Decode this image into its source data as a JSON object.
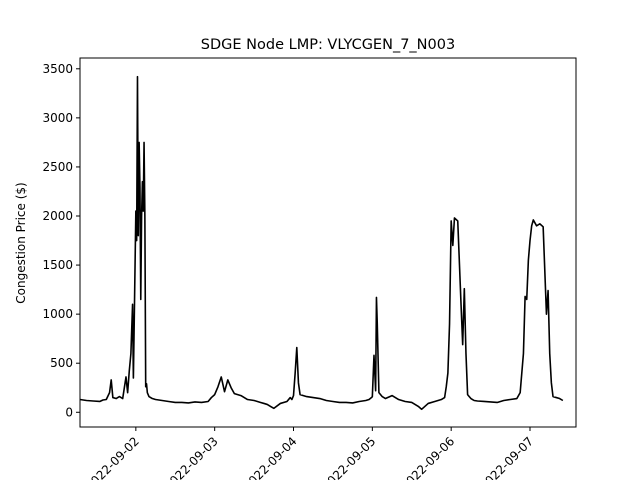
{
  "chart_data": {
    "type": "line",
    "title": "SDGE Node LMP: VLYCGEN_7_N003",
    "xlabel": "",
    "ylabel": "Congestion Price ($)",
    "x_axis_type": "datetime",
    "xlim": [
      "2022-09-01T07:00",
      "2022-09-07T14:00"
    ],
    "ylim": [
      -150,
      3610
    ],
    "x_ticks": [
      "2022-09-02",
      "2022-09-03",
      "2022-09-04",
      "2022-09-05",
      "2022-09-06",
      "2022-09-07"
    ],
    "x_tick_labels": [
      "2022-09-02",
      "2022-09-03",
      "2022-09-04",
      "2022-09-05",
      "2022-09-06",
      "2022-09-07"
    ],
    "y_ticks": [
      0,
      500,
      1000,
      1500,
      2000,
      2500,
      3000,
      3500
    ],
    "y_tick_labels": [
      "0",
      "500",
      "1000",
      "1500",
      "2000",
      "2500",
      "3000",
      "3500"
    ],
    "grid": false,
    "line_color": "#000000",
    "series": [
      {
        "x": [
          "2022-09-01T07:00",
          "2022-09-01T09:00",
          "2022-09-01T11:00",
          "2022-09-01T13:00",
          "2022-09-01T14:00",
          "2022-09-01T15:00",
          "2022-09-01T16:00",
          "2022-09-01T16:30",
          "2022-09-01T17:00",
          "2022-09-01T18:00",
          "2022-09-01T19:00",
          "2022-09-01T20:00",
          "2022-09-01T20:30",
          "2022-09-01T21:00",
          "2022-09-01T21:30",
          "2022-09-01T22:00",
          "2022-09-01T22:30",
          "2022-09-01T23:00",
          "2022-09-01T23:15",
          "2022-09-01T23:30",
          "2022-09-02T00:00",
          "2022-09-02T00:15",
          "2022-09-02T00:30",
          "2022-09-02T00:45",
          "2022-09-02T01:00",
          "2022-09-02T01:15",
          "2022-09-02T01:30",
          "2022-09-02T01:45",
          "2022-09-02T02:00",
          "2022-09-02T02:15",
          "2022-09-02T02:30",
          "2022-09-02T02:45",
          "2022-09-02T03:00",
          "2022-09-02T03:15",
          "2022-09-02T03:30",
          "2022-09-02T04:00",
          "2022-09-02T05:00",
          "2022-09-02T06:00",
          "2022-09-02T08:00",
          "2022-09-02T10:00",
          "2022-09-02T12:00",
          "2022-09-02T14:00",
          "2022-09-02T16:00",
          "2022-09-02T18:00",
          "2022-09-02T20:00",
          "2022-09-02T22:00",
          "2022-09-02T23:00",
          "2022-09-03T00:00",
          "2022-09-03T01:00",
          "2022-09-03T02:00",
          "2022-09-03T03:00",
          "2022-09-03T04:00",
          "2022-09-03T05:00",
          "2022-09-03T06:00",
          "2022-09-03T08:00",
          "2022-09-03T10:00",
          "2022-09-03T12:00",
          "2022-09-03T14:00",
          "2022-09-03T15:00",
          "2022-09-03T16:00",
          "2022-09-03T17:00",
          "2022-09-03T18:00",
          "2022-09-03T20:00",
          "2022-09-03T22:00",
          "2022-09-03T23:00",
          "2022-09-03T23:30",
          "2022-09-04T00:00",
          "2022-09-04T00:30",
          "2022-09-04T01:00",
          "2022-09-04T01:30",
          "2022-09-04T02:00",
          "2022-09-04T04:00",
          "2022-09-04T06:00",
          "2022-09-04T08:00",
          "2022-09-04T10:00",
          "2022-09-04T12:00",
          "2022-09-04T14:00",
          "2022-09-04T16:00",
          "2022-09-04T18:00",
          "2022-09-04T20:00",
          "2022-09-04T22:00",
          "2022-09-04T23:00",
          "2022-09-04T23:45",
          "2022-09-05T00:00",
          "2022-09-05T00:30",
          "2022-09-05T01:00",
          "2022-09-05T01:15",
          "2022-09-05T01:30",
          "2022-09-05T02:00",
          "2022-09-05T03:00",
          "2022-09-05T04:00",
          "2022-09-05T06:00",
          "2022-09-05T08:00",
          "2022-09-05T10:00",
          "2022-09-05T12:00",
          "2022-09-05T13:00",
          "2022-09-05T14:00",
          "2022-09-05T15:00",
          "2022-09-05T17:00",
          "2022-09-05T19:00",
          "2022-09-05T21:00",
          "2022-09-05T22:00",
          "2022-09-05T22:30",
          "2022-09-05T23:00",
          "2022-09-05T23:30",
          "2022-09-06T00:00",
          "2022-09-06T00:30",
          "2022-09-06T01:00",
          "2022-09-06T02:00",
          "2022-09-06T03:00",
          "2022-09-06T03:30",
          "2022-09-06T04:00",
          "2022-09-06T04:30",
          "2022-09-06T05:00",
          "2022-09-06T05:30",
          "2022-09-06T06:00",
          "2022-09-06T06:30",
          "2022-09-06T07:00",
          "2022-09-06T08:00",
          "2022-09-06T10:00",
          "2022-09-06T12:00",
          "2022-09-06T14:00",
          "2022-09-06T16:00",
          "2022-09-06T18:00",
          "2022-09-06T20:00",
          "2022-09-06T21:00",
          "2022-09-06T22:00",
          "2022-09-06T22:30",
          "2022-09-06T23:00",
          "2022-09-06T23:30",
          "2022-09-07T00:00",
          "2022-09-07T00:30",
          "2022-09-07T01:00",
          "2022-09-07T02:00",
          "2022-09-07T03:00",
          "2022-09-07T04:00",
          "2022-09-07T05:00",
          "2022-09-07T05:30",
          "2022-09-07T06:00",
          "2022-09-07T06:30",
          "2022-09-07T07:00",
          "2022-09-07T08:00",
          "2022-09-07T09:00",
          "2022-09-07T10:00"
        ],
        "y": [
          130,
          120,
          115,
          110,
          125,
          130,
          200,
          330,
          150,
          140,
          160,
          140,
          250,
          360,
          200,
          420,
          600,
          1100,
          350,
          900,
          2050,
          1750,
          3420,
          1800,
          2750,
          2300,
          1150,
          2000,
          2350,
          2050,
          2750,
          2000,
          260,
          290,
          200,
          160,
          140,
          130,
          120,
          110,
          100,
          100,
          95,
          105,
          100,
          110,
          150,
          180,
          260,
          360,
          210,
          330,
          250,
          190,
          170,
          130,
          120,
          100,
          90,
          80,
          60,
          40,
          90,
          110,
          150,
          130,
          170,
          400,
          660,
          300,
          180,
          160,
          150,
          140,
          120,
          110,
          100,
          100,
          95,
          110,
          120,
          130,
          150,
          160,
          580,
          220,
          1170,
          900,
          200,
          160,
          140,
          170,
          130,
          110,
          100,
          80,
          60,
          30,
          90,
          110,
          130,
          150,
          260,
          400,
          900,
          1950,
          1700,
          1980,
          1950,
          1100,
          690,
          1260,
          600,
          180,
          160,
          140,
          130,
          120,
          115,
          110,
          105,
          100,
          120,
          130,
          140,
          200,
          600,
          1180,
          1150,
          1550,
          1750,
          1900,
          1960,
          1900,
          1920,
          1890,
          1000,
          1240,
          600,
          300,
          160,
          150,
          140,
          120
        ]
      }
    ]
  }
}
